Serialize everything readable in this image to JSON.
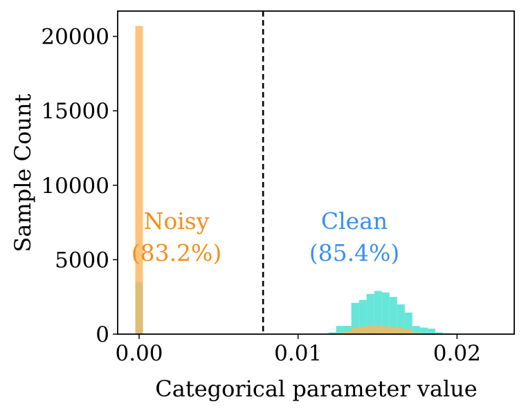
{
  "chart_data": {
    "type": "bar",
    "title": "",
    "xlabel": "Categorical parameter value",
    "ylabel": "Sample Count",
    "xlim": [
      -0.00135,
      0.0236
    ],
    "ylim": [
      0,
      21700
    ],
    "xticks": [
      0.0,
      0.01,
      0.02
    ],
    "xtick_labels": [
      "0.00",
      "0.01",
      "0.02"
    ],
    "yticks": [
      0,
      5000,
      10000,
      15000,
      20000
    ],
    "ytick_labels": [
      "0",
      "5000",
      "10000",
      "15000",
      "20000"
    ],
    "grid": false,
    "bin_width": 0.00048,
    "series": [
      {
        "color": "#40e0d0",
        "bins": [
          {
            "x": 0.0,
            "value": 3500
          },
          {
            "x": 0.01215,
            "value": 120
          },
          {
            "x": 0.01263,
            "value": 550
          },
          {
            "x": 0.01311,
            "value": 560
          },
          {
            "x": 0.01359,
            "value": 2100
          },
          {
            "x": 0.01407,
            "value": 2300
          },
          {
            "x": 0.01455,
            "value": 2700
          },
          {
            "x": 0.01503,
            "value": 2900
          },
          {
            "x": 0.01551,
            "value": 2800
          },
          {
            "x": 0.01599,
            "value": 2500
          },
          {
            "x": 0.01647,
            "value": 2000
          },
          {
            "x": 0.01695,
            "value": 1450
          },
          {
            "x": 0.01743,
            "value": 550
          },
          {
            "x": 0.01791,
            "value": 440
          },
          {
            "x": 0.01839,
            "value": 370
          },
          {
            "x": 0.01887,
            "value": 120
          },
          {
            "x": 0.01935,
            "value": 60
          },
          {
            "x": 0.01983,
            "value": 40
          },
          {
            "x": 0.02031,
            "value": 20
          }
        ]
      },
      {
        "color": "#fdb55a",
        "bins": [
          {
            "x": 0.0,
            "value": 20700
          },
          {
            "x": 0.01263,
            "value": 80
          },
          {
            "x": 0.01311,
            "value": 200
          },
          {
            "x": 0.01359,
            "value": 420
          },
          {
            "x": 0.01407,
            "value": 520
          },
          {
            "x": 0.01455,
            "value": 560
          },
          {
            "x": 0.01503,
            "value": 560
          },
          {
            "x": 0.01551,
            "value": 540
          },
          {
            "x": 0.01599,
            "value": 500
          },
          {
            "x": 0.01647,
            "value": 430
          },
          {
            "x": 0.01695,
            "value": 330
          },
          {
            "x": 0.01743,
            "value": 120
          },
          {
            "x": 0.01791,
            "value": 60
          }
        ]
      }
    ],
    "threshold": {
      "x": 0.0078,
      "style": "dashed",
      "color": "#000000"
    },
    "annotations": [
      {
        "line1": "Noisy",
        "line2": "(83.2%)",
        "color": "#f58d1c"
      },
      {
        "line1": "Clean",
        "line2": "(85.4%)",
        "color": "#3a8ff0"
      }
    ]
  }
}
